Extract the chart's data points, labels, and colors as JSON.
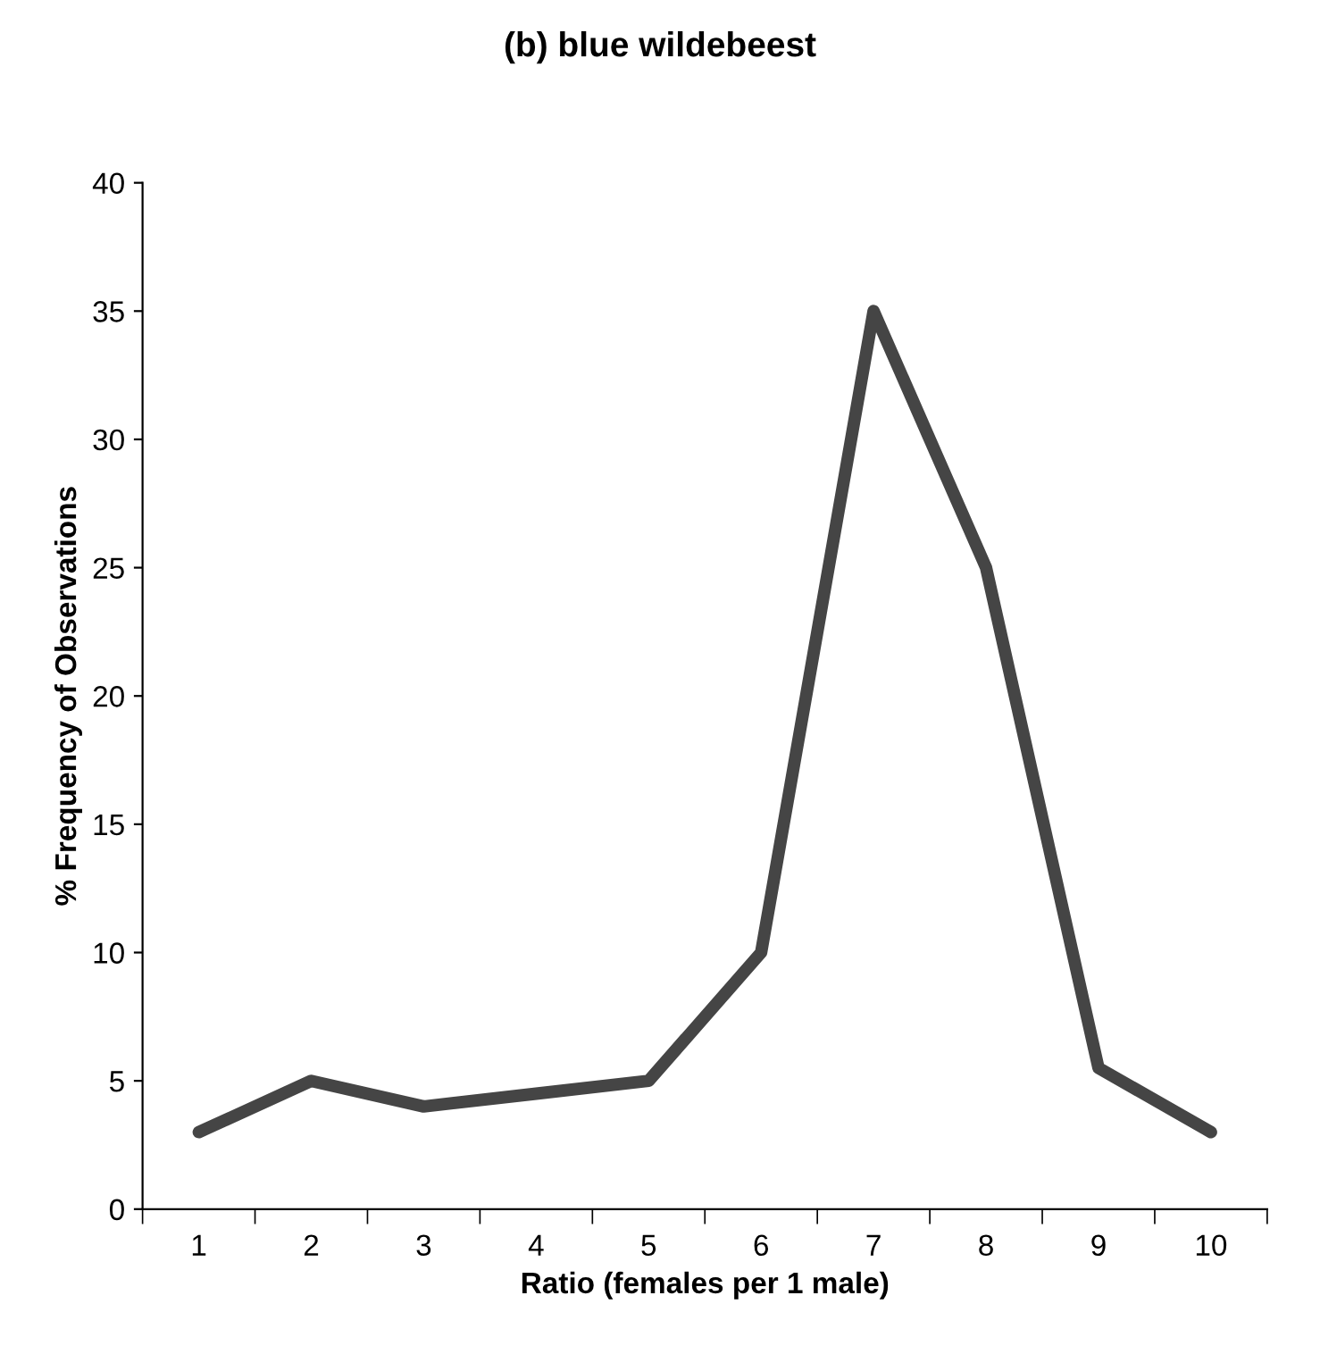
{
  "chart_data": {
    "type": "line",
    "title": "(b) blue wildebeest",
    "xlabel": "Ratio (females per 1 male)",
    "ylabel": "% Frequency of Observations",
    "categories": [
      "1",
      "2",
      "3",
      "4",
      "5",
      "6",
      "7",
      "8",
      "9",
      "10"
    ],
    "series": [
      {
        "color": "#454545",
        "values": [
          3,
          5,
          4,
          4.5,
          5,
          10,
          35,
          25,
          5.5,
          3
        ]
      }
    ],
    "ylim": [
      0,
      40
    ],
    "yticks": [
      0,
      5,
      10,
      15,
      20,
      25,
      30,
      35,
      40
    ],
    "grid": false,
    "legend": false,
    "marker": "none",
    "line_style": "solid"
  }
}
